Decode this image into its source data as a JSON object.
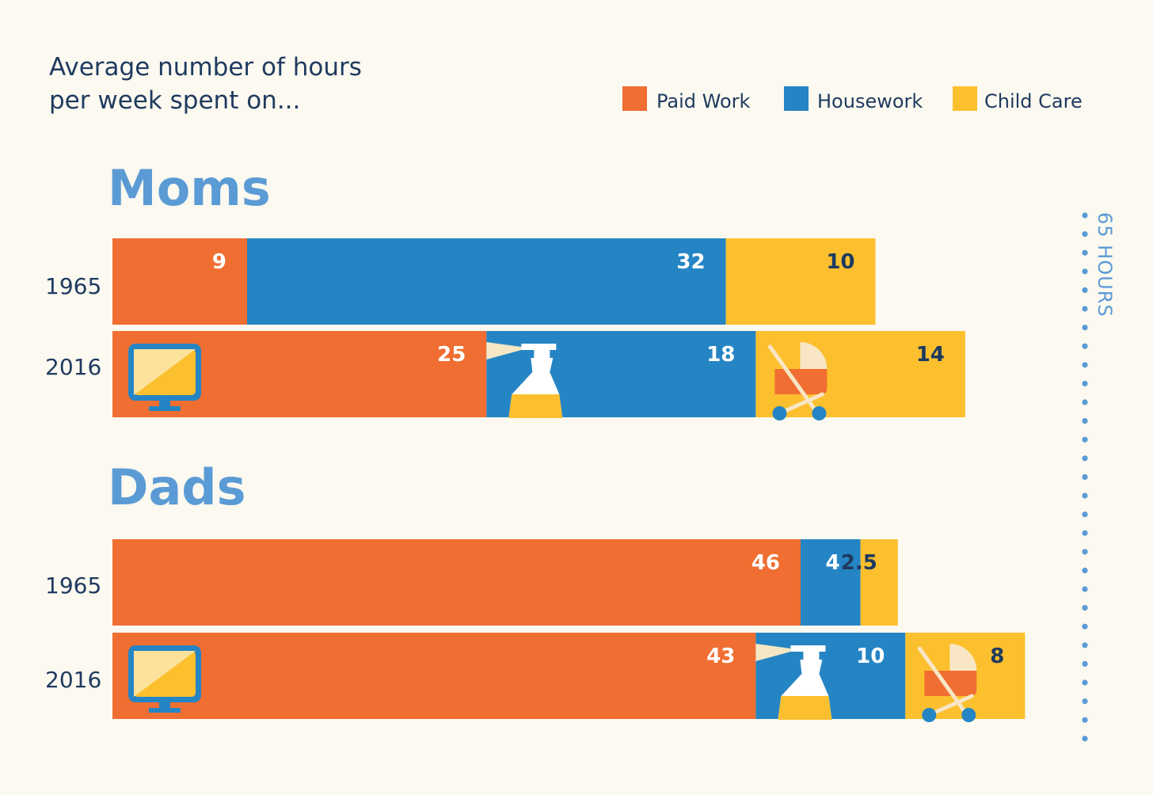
{
  "chart_data": {
    "type": "bar",
    "orientation": "horizontal",
    "stacked": true,
    "title": "Average number of hours per week spent on...",
    "title_lines": [
      "Average number of hours",
      "per week spent on..."
    ],
    "series_names": [
      "Paid Work",
      "Housework",
      "Child Care"
    ],
    "legend": [
      {
        "name": "Paid Work",
        "color": "#f06e32"
      },
      {
        "name": "Housework",
        "color": "#2585c4"
      },
      {
        "name": "Child Care",
        "color": "#fcc02e"
      }
    ],
    "legend_position": "top-right",
    "groups": [
      {
        "name": "Moms",
        "bars": [
          {
            "year": "1965",
            "values": [
              9,
              32,
              10
            ],
            "labels": [
              "9",
              "32",
              "10"
            ],
            "icons": false
          },
          {
            "year": "2016",
            "values": [
              25,
              18,
              14
            ],
            "labels": [
              "25",
              "18",
              "14"
            ],
            "icons": true
          }
        ]
      },
      {
        "name": "Dads",
        "bars": [
          {
            "year": "1965",
            "values": [
              46,
              4,
              2.5
            ],
            "labels": [
              "46",
              "4",
              "2.5"
            ],
            "icons": false
          },
          {
            "year": "2016",
            "values": [
              43,
              10,
              8
            ],
            "labels": [
              "43",
              "10",
              "8"
            ],
            "icons": true
          }
        ]
      }
    ],
    "reference_line": {
      "value": 65,
      "label": "65 HOURS",
      "style": "dotted"
    },
    "colors": {
      "background": "#fbf9f0",
      "paid_work": "#f06e32",
      "housework": "#2585c4",
      "child_care": "#fcc02e",
      "title_text": "#1f3a5f",
      "group_title": "#5b9bd5"
    },
    "icons": [
      "monitor-icon",
      "spray-bottle-icon",
      "stroller-icon"
    ]
  }
}
